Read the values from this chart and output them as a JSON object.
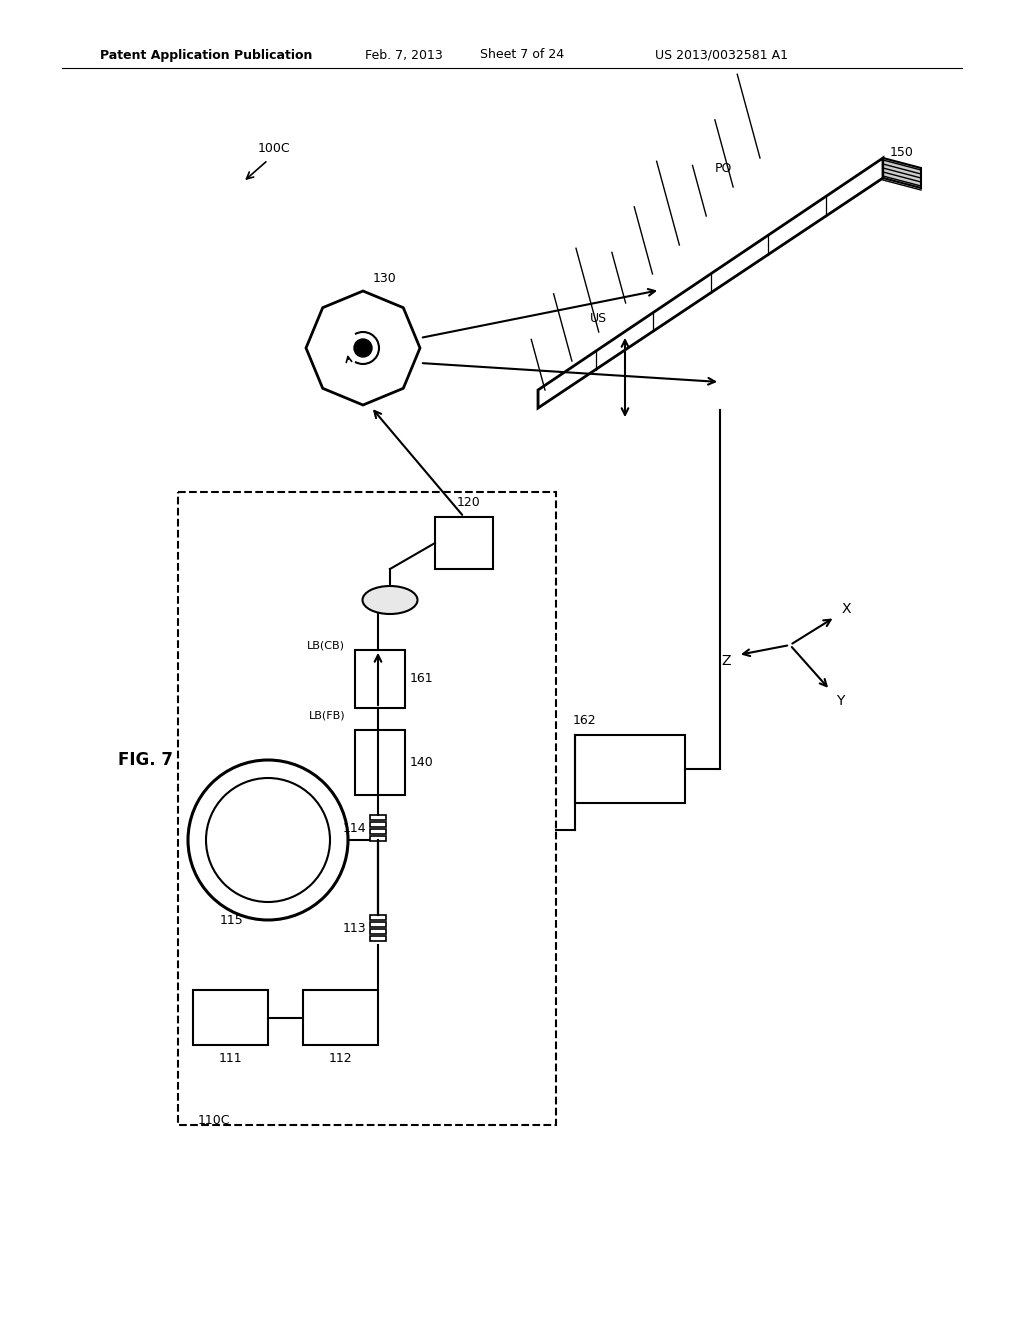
{
  "bg_color": "#ffffff",
  "header_text": "Patent Application Publication",
  "header_date": "Feb. 7, 2013",
  "header_sheet": "Sheet 7 of 24",
  "header_patent": "US 2013/0032581 A1",
  "fig_label": "FIG. 7",
  "label_100C": "100C",
  "label_110C": "110C",
  "label_111": "111",
  "label_112": "112",
  "label_113": "113",
  "label_114": "114",
  "label_115": "115",
  "label_120": "120",
  "label_130": "130",
  "label_140": "140",
  "label_150": "150",
  "label_161": "161",
  "label_162": "162",
  "label_LB_FB": "LB(FB)",
  "label_LB_CB": "LB(CB)",
  "label_US": "US",
  "label_PO": "PO",
  "label_X": "X",
  "label_Y": "Y",
  "label_Z": "Z"
}
